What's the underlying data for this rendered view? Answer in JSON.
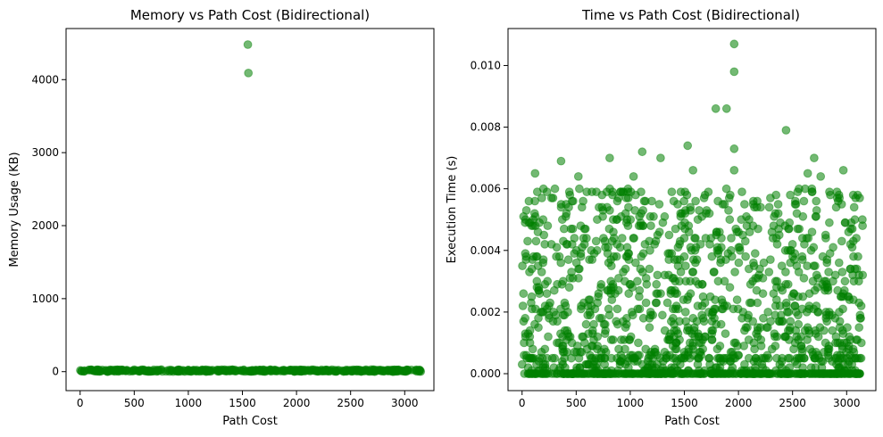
{
  "figure": {
    "point_color": "#008000",
    "point_opacity": 0.55
  },
  "chart_data": [
    {
      "type": "scatter",
      "title": "Memory vs Path Cost (Bidirectional)",
      "xlabel": "Path Cost",
      "ylabel": "Memory Usage (KB)",
      "xlim": [
        -130,
        3270
      ],
      "ylim": [
        -260,
        4700
      ],
      "xticks": [
        0,
        500,
        1000,
        1500,
        2000,
        2500,
        3000
      ],
      "yticks": [
        0,
        1000,
        2000,
        3000,
        4000
      ],
      "grid": false,
      "outliers": [
        {
          "x": 1550,
          "y": 4480
        },
        {
          "x": 1555,
          "y": 4090
        }
      ],
      "band": {
        "x_min": 0,
        "x_max": 3150,
        "y_values": [
          0,
          5,
          10,
          15,
          20
        ],
        "count": 420
      }
    },
    {
      "type": "scatter",
      "title": "Time vs Path Cost (Bidirectional)",
      "xlabel": "Path Cost",
      "ylabel": "Execution Time (s)",
      "xlim": [
        -130,
        3270
      ],
      "ylim": [
        -0.00055,
        0.0112
      ],
      "xticks": [
        0,
        500,
        1000,
        1500,
        2000,
        2500,
        3000
      ],
      "yticks": [
        0.0,
        0.002,
        0.004,
        0.006,
        0.008,
        0.01
      ],
      "ytick_labels": [
        "0.000",
        "0.002",
        "0.004",
        "0.006",
        "0.008",
        "0.010"
      ],
      "grid": false,
      "outliers": [
        {
          "x": 1960,
          "y": 0.0107
        },
        {
          "x": 1960,
          "y": 0.0098
        },
        {
          "x": 1790,
          "y": 0.0086
        },
        {
          "x": 1890,
          "y": 0.0086
        },
        {
          "x": 2440,
          "y": 0.0079
        },
        {
          "x": 1530,
          "y": 0.0074
        },
        {
          "x": 1960,
          "y": 0.0073
        },
        {
          "x": 1110,
          "y": 0.0072
        },
        {
          "x": 810,
          "y": 0.007
        },
        {
          "x": 1280,
          "y": 0.007
        },
        {
          "x": 2700,
          "y": 0.007
        },
        {
          "x": 360,
          "y": 0.0069
        },
        {
          "x": 1960,
          "y": 0.0066
        },
        {
          "x": 2970,
          "y": 0.0066
        },
        {
          "x": 1580,
          "y": 0.0066
        },
        {
          "x": 120,
          "y": 0.0065
        },
        {
          "x": 2640,
          "y": 0.0065
        },
        {
          "x": 2760,
          "y": 0.0064
        },
        {
          "x": 520,
          "y": 0.0064
        },
        {
          "x": 1030,
          "y": 0.0064
        }
      ],
      "band": {
        "x_min": 0,
        "x_max": 3150,
        "y_max": 0.0061,
        "count": 1500
      }
    }
  ]
}
